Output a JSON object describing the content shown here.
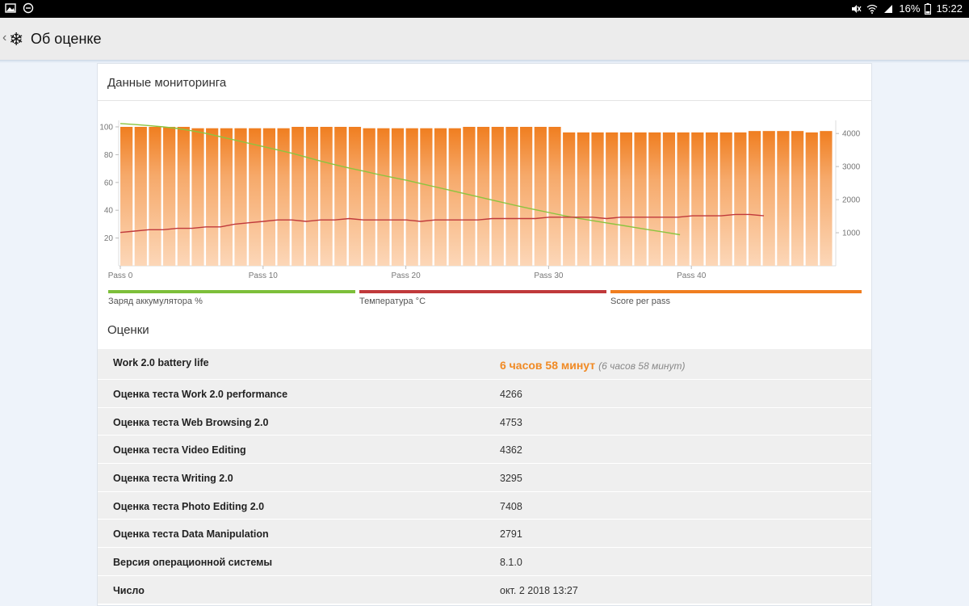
{
  "statusbar": {
    "battery_text": "16%",
    "time": "15:22"
  },
  "appbar": {
    "back_glyph": "‹",
    "title": "Об оценке"
  },
  "monitoring": {
    "title": "Данные мониторинга"
  },
  "legend": {
    "battery": "Заряд аккумулятора %",
    "temperature": "Температура °C",
    "score": "Score per pass",
    "colors": {
      "battery": "#7dbf3a",
      "temperature": "#c0393b",
      "score": "#f07e20"
    }
  },
  "chart_data": {
    "type": "bar",
    "x_tick_labels": [
      "Pass 0",
      "Pass 10",
      "Pass 20",
      "Pass 30",
      "Pass 40"
    ],
    "left_axis": {
      "ticks": [
        "20",
        "40",
        "60",
        "80",
        "100"
      ],
      "ylim": [
        0,
        100
      ]
    },
    "right_axis": {
      "ticks": [
        "1000",
        "2000",
        "3000",
        "4000"
      ],
      "ylim": [
        0,
        4200
      ]
    },
    "series": [
      {
        "name": "Score per pass",
        "axis": "left",
        "values": [
          100,
          100,
          100,
          100,
          100,
          99,
          99,
          99,
          99,
          99,
          99,
          99,
          100,
          100,
          100,
          100,
          100,
          99,
          99,
          99,
          99,
          99,
          99,
          99,
          100,
          100,
          100,
          100,
          100,
          100,
          100,
          96,
          96,
          96,
          96,
          96,
          96,
          96,
          96,
          96,
          96,
          96,
          96,
          96,
          97,
          97,
          97,
          97,
          96,
          97
        ]
      },
      {
        "name": "Заряд аккумулятора %",
        "axis": "right",
        "values": [
          4300,
          4270,
          4240,
          4200,
          4150,
          4080,
          4000,
          3900,
          3800,
          3700,
          3600,
          3500,
          3400,
          3280,
          3160,
          3050,
          2950,
          2860,
          2760,
          2670,
          2580,
          2480,
          2380,
          2280,
          2180,
          2080,
          1980,
          1880,
          1780,
          1690,
          1600,
          1510,
          1430,
          1360,
          1290,
          1220,
          1150,
          1080,
          1010,
          940
        ]
      },
      {
        "name": "Температура °C",
        "axis": "left",
        "values": [
          24,
          25,
          26,
          26,
          27,
          27,
          28,
          28,
          30,
          31,
          32,
          33,
          33,
          32,
          33,
          33,
          34,
          33,
          33,
          33,
          33,
          32,
          33,
          33,
          33,
          33,
          34,
          34,
          34,
          34,
          35,
          35,
          35,
          35,
          34,
          35,
          35,
          35,
          35,
          35,
          36,
          36,
          36,
          37,
          37,
          36
        ]
      }
    ],
    "colors": {
      "bars_top": "#f07e20",
      "bars_bottom": "#fcd6b6",
      "battery": "#8cc43f",
      "temperature": "#c0393b"
    }
  },
  "scores": {
    "title": "Оценки",
    "rows": [
      {
        "key": "Work 2.0 battery life",
        "value_main": "6 часов 58 минут",
        "value_sub": "(6 часов 58 минут)"
      },
      {
        "key": "Оценка теста Work 2.0 performance",
        "value": "4266"
      },
      {
        "key": "Оценка теста Web Browsing 2.0",
        "value": "4753"
      },
      {
        "key": "Оценка теста Video Editing",
        "value": "4362"
      },
      {
        "key": "Оценка теста Writing 2.0",
        "value": "3295"
      },
      {
        "key": "Оценка теста Photo Editing 2.0",
        "value": "7408"
      },
      {
        "key": "Оценка теста Data Manipulation",
        "value": "2791"
      },
      {
        "key": "Версия операционной системы",
        "value": "8.1.0"
      },
      {
        "key": "Число",
        "value": "окт. 2 2018 13:27"
      }
    ]
  }
}
